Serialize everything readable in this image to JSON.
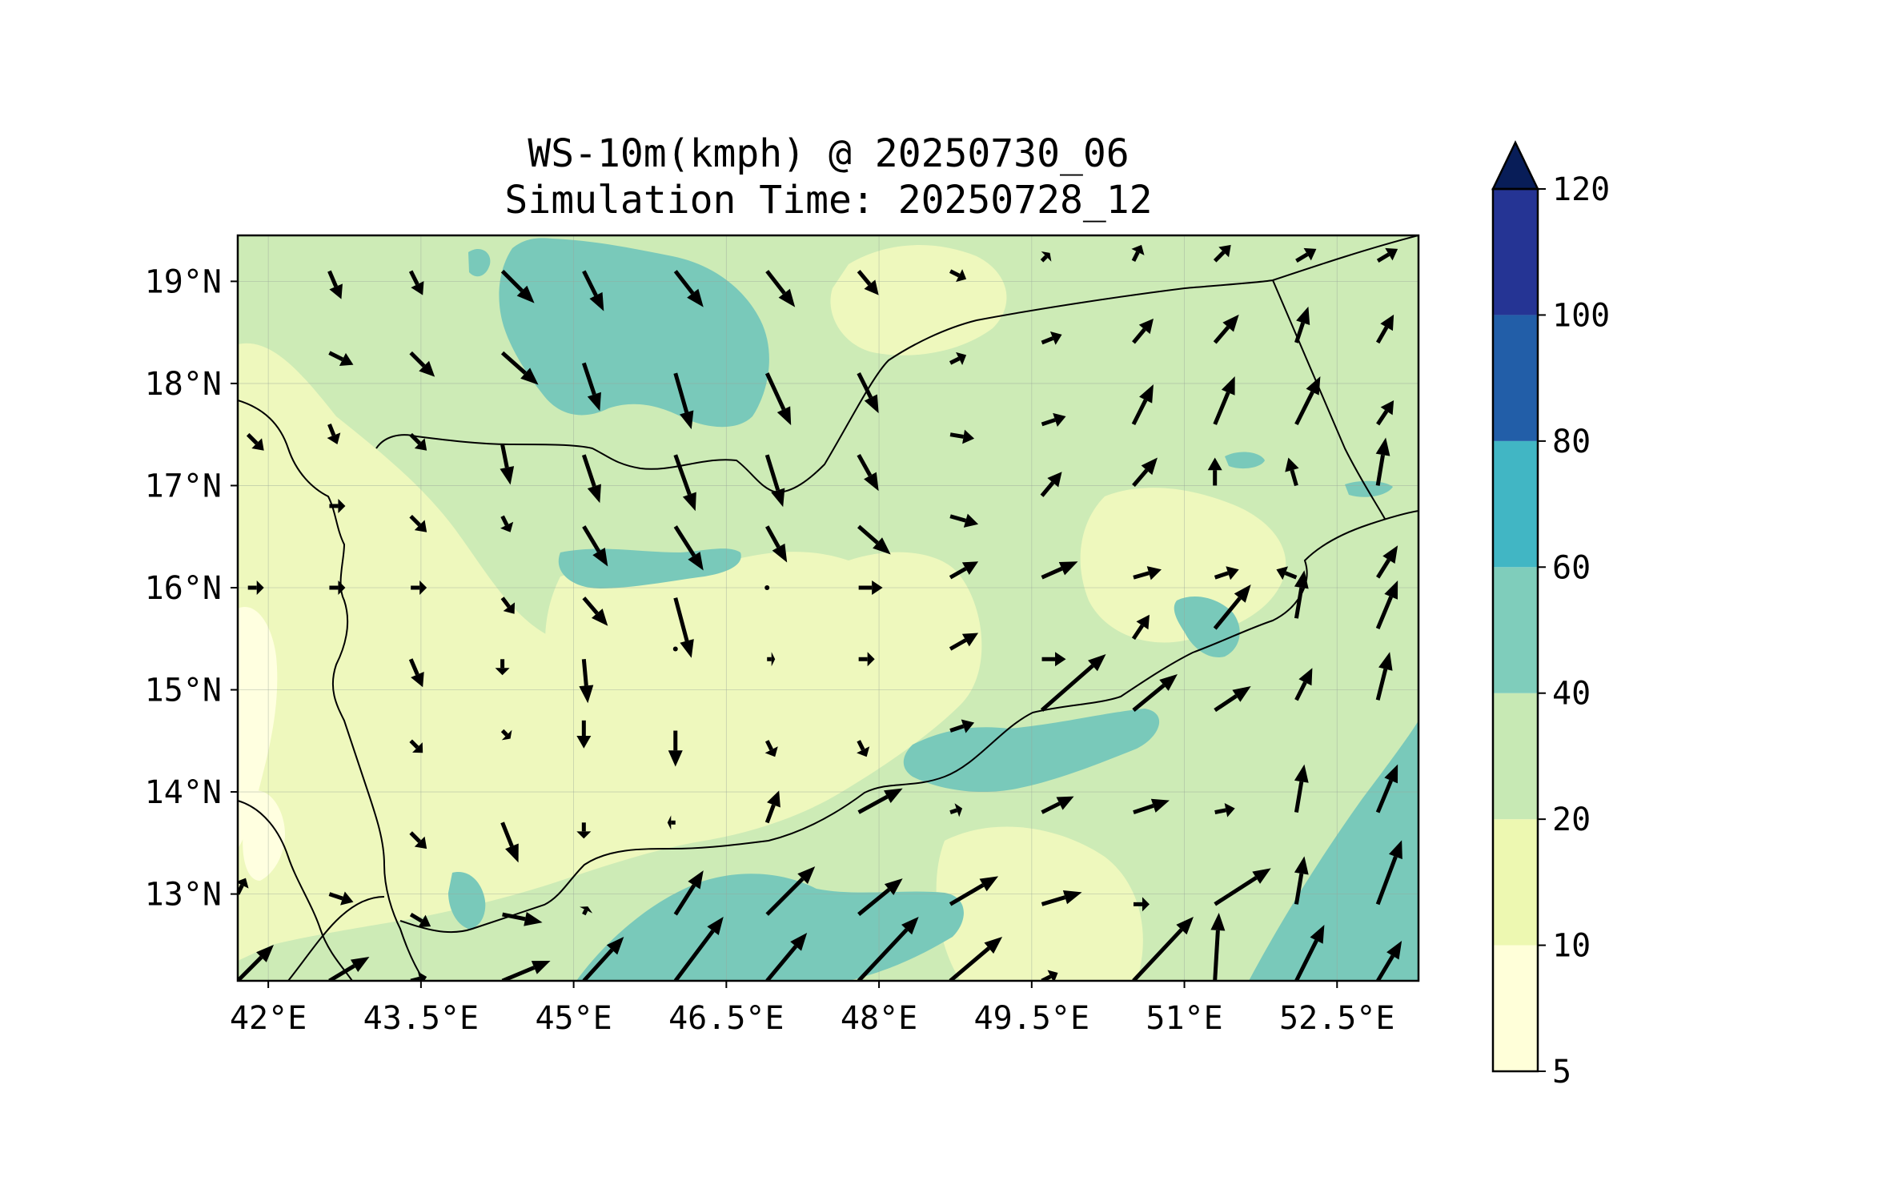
{
  "title": "WS-10m(kmph) @ 20250730_06",
  "subtitle": "Simulation Time: 20250728_12",
  "map": {
    "lon_range": [
      41.7,
      53.3
    ],
    "lat_range": [
      12.15,
      19.45
    ],
    "x_ticks": [
      {
        "value": 42.0,
        "label": "42°E"
      },
      {
        "value": 43.5,
        "label": "43.5°E"
      },
      {
        "value": 45.0,
        "label": "45°E"
      },
      {
        "value": 46.5,
        "label": "46.5°E"
      },
      {
        "value": 48.0,
        "label": "48°E"
      },
      {
        "value": 49.5,
        "label": "49.5°E"
      },
      {
        "value": 51.0,
        "label": "51°E"
      },
      {
        "value": 52.5,
        "label": "52.5°E"
      }
    ],
    "y_ticks": [
      {
        "value": 19,
        "label": "19°N"
      },
      {
        "value": 18,
        "label": "18°N"
      },
      {
        "value": 17,
        "label": "17°N"
      },
      {
        "value": 16,
        "label": "16°N"
      },
      {
        "value": 15,
        "label": "15°N"
      },
      {
        "value": 14,
        "label": "14°N"
      },
      {
        "value": 13,
        "label": "13°N"
      }
    ],
    "grid": true,
    "background_color": "#d6efb8"
  },
  "colorbar": {
    "levels": [
      {
        "label": "5",
        "color": "#ffffd9"
      },
      {
        "label": "10",
        "color": "#edf8b1"
      },
      {
        "label": "20",
        "color": "#c7e9b4"
      },
      {
        "label": "40",
        "color": "#7fcdbb"
      },
      {
        "label": "60",
        "color": "#41b6c4"
      },
      {
        "label": "80",
        "color": "#225ea8"
      },
      {
        "label": "100",
        "color": "#253494"
      },
      {
        "label": "120",
        "color": "#081d58"
      }
    ],
    "extend": "max"
  },
  "chart_data": {
    "type": "heatmap",
    "variable": "WS-10m(kmph)",
    "vectors_note": "wind direction arrows",
    "wind_vectors": [
      [
        42.6,
        19.1,
        0.15,
        -0.35
      ],
      [
        43.4,
        19.1,
        0.15,
        -0.3
      ],
      [
        44.3,
        19.1,
        0.4,
        -0.4
      ],
      [
        45.1,
        19.1,
        0.25,
        -0.5
      ],
      [
        46.0,
        19.1,
        0.35,
        -0.45
      ],
      [
        46.9,
        19.1,
        0.35,
        -0.45
      ],
      [
        47.8,
        19.1,
        0.25,
        -0.3
      ],
      [
        48.7,
        19.1,
        0.2,
        -0.1
      ],
      [
        49.6,
        19.2,
        0.1,
        0.1
      ],
      [
        50.5,
        19.2,
        0.1,
        0.2
      ],
      [
        51.3,
        19.2,
        0.2,
        0.2
      ],
      [
        52.1,
        19.2,
        0.25,
        0.15
      ],
      [
        52.9,
        19.2,
        0.25,
        0.15
      ],
      [
        42.6,
        18.3,
        0.3,
        -0.15
      ],
      [
        43.4,
        18.3,
        0.3,
        -0.3
      ],
      [
        44.3,
        18.3,
        0.45,
        -0.4
      ],
      [
        45.1,
        18.2,
        0.2,
        -0.6
      ],
      [
        46.0,
        18.1,
        0.2,
        -0.7
      ],
      [
        46.9,
        18.1,
        0.3,
        -0.65
      ],
      [
        47.8,
        18.1,
        0.25,
        -0.5
      ],
      [
        48.7,
        18.2,
        0.2,
        0.1
      ],
      [
        49.6,
        18.4,
        0.25,
        0.1
      ],
      [
        50.5,
        18.4,
        0.25,
        0.3
      ],
      [
        51.3,
        18.4,
        0.3,
        0.35
      ],
      [
        52.1,
        18.4,
        0.15,
        0.45
      ],
      [
        52.9,
        18.4,
        0.2,
        0.35
      ],
      [
        41.8,
        17.5,
        0.2,
        -0.2
      ],
      [
        42.6,
        17.6,
        0.1,
        -0.25
      ],
      [
        43.4,
        17.5,
        0.2,
        -0.2
      ],
      [
        44.3,
        17.4,
        0.1,
        -0.5
      ],
      [
        45.1,
        17.3,
        0.2,
        -0.6
      ],
      [
        46.0,
        17.3,
        0.25,
        -0.7
      ],
      [
        46.9,
        17.3,
        0.2,
        -0.65
      ],
      [
        47.8,
        17.3,
        0.25,
        -0.45
      ],
      [
        48.7,
        17.5,
        0.3,
        -0.05
      ],
      [
        49.6,
        17.6,
        0.3,
        0.1
      ],
      [
        50.5,
        17.6,
        0.25,
        0.5
      ],
      [
        51.3,
        17.6,
        0.25,
        0.6
      ],
      [
        52.1,
        17.6,
        0.3,
        0.6
      ],
      [
        52.9,
        17.6,
        0.2,
        0.3
      ],
      [
        42.6,
        16.8,
        0.2,
        0.0
      ],
      [
        43.4,
        16.7,
        0.2,
        -0.2
      ],
      [
        44.3,
        16.7,
        0.1,
        -0.2
      ],
      [
        45.1,
        16.6,
        0.3,
        -0.5
      ],
      [
        46.0,
        16.6,
        0.35,
        -0.55
      ],
      [
        46.9,
        16.6,
        0.25,
        -0.45
      ],
      [
        47.8,
        16.6,
        0.4,
        -0.35
      ],
      [
        48.7,
        16.7,
        0.35,
        -0.1
      ],
      [
        49.6,
        16.9,
        0.25,
        0.3
      ],
      [
        50.5,
        17.0,
        0.3,
        0.35
      ],
      [
        51.3,
        17.0,
        0.0,
        0.35
      ],
      [
        52.1,
        17.0,
        -0.1,
        0.35
      ],
      [
        52.9,
        17.0,
        0.1,
        0.6
      ],
      [
        41.8,
        16.0,
        0.2,
        0.0
      ],
      [
        42.6,
        16.0,
        0.2,
        0.0
      ],
      [
        43.4,
        16.0,
        0.2,
        0.0
      ],
      [
        44.3,
        15.9,
        0.15,
        -0.2
      ],
      [
        45.1,
        15.9,
        0.3,
        -0.35
      ],
      [
        46.0,
        15.9,
        0.2,
        -0.75
      ],
      [
        46.9,
        16.0,
        0.0,
        0.05
      ],
      [
        47.8,
        16.0,
        0.3,
        0.0
      ],
      [
        48.7,
        16.1,
        0.35,
        0.2
      ],
      [
        49.6,
        16.1,
        0.45,
        0.2
      ],
      [
        50.5,
        16.1,
        0.35,
        0.1
      ],
      [
        51.3,
        16.1,
        0.3,
        0.1
      ],
      [
        52.1,
        16.1,
        -0.25,
        0.1
      ],
      [
        52.9,
        16.1,
        0.25,
        0.4
      ],
      [
        43.4,
        15.3,
        0.15,
        -0.35
      ],
      [
        44.3,
        15.3,
        0.0,
        -0.2
      ],
      [
        45.1,
        15.3,
        0.05,
        -0.55
      ],
      [
        46.0,
        15.4,
        0.0,
        0.0
      ],
      [
        46.9,
        15.3,
        0.1,
        0.0
      ],
      [
        47.8,
        15.3,
        0.2,
        0.0
      ],
      [
        48.7,
        15.4,
        0.35,
        0.2
      ],
      [
        49.6,
        15.3,
        0.3,
        0.0
      ],
      [
        50.5,
        15.5,
        0.2,
        0.3
      ],
      [
        51.3,
        15.6,
        0.45,
        0.55
      ],
      [
        52.1,
        15.7,
        0.1,
        0.6
      ],
      [
        52.9,
        15.6,
        0.25,
        0.6
      ],
      [
        43.4,
        14.5,
        0.15,
        -0.15
      ],
      [
        44.3,
        14.6,
        0.1,
        -0.1
      ],
      [
        45.1,
        14.7,
        0.0,
        -0.35
      ],
      [
        46.0,
        14.6,
        0.0,
        -0.45
      ],
      [
        46.9,
        14.5,
        0.1,
        -0.2
      ],
      [
        47.8,
        14.5,
        0.1,
        -0.2
      ],
      [
        48.7,
        14.6,
        0.3,
        0.1
      ],
      [
        49.6,
        14.8,
        0.8,
        0.7
      ],
      [
        50.5,
        14.8,
        0.55,
        0.45
      ],
      [
        51.3,
        14.8,
        0.45,
        0.3
      ],
      [
        52.1,
        14.9,
        0.2,
        0.4
      ],
      [
        52.9,
        14.9,
        0.15,
        0.6
      ],
      [
        43.4,
        13.6,
        0.2,
        -0.2
      ],
      [
        44.3,
        13.7,
        0.2,
        -0.5
      ],
      [
        45.1,
        13.7,
        0.0,
        -0.2
      ],
      [
        46.0,
        13.7,
        -0.1,
        0.0
      ],
      [
        46.9,
        13.7,
        0.15,
        0.4
      ],
      [
        47.8,
        13.8,
        0.55,
        0.3
      ],
      [
        48.7,
        13.8,
        0.15,
        0.05
      ],
      [
        49.6,
        13.8,
        0.4,
        0.2
      ],
      [
        50.5,
        13.8,
        0.45,
        0.15
      ],
      [
        51.3,
        13.8,
        0.25,
        0.05
      ],
      [
        52.1,
        13.8,
        0.1,
        0.6
      ],
      [
        52.9,
        13.8,
        0.25,
        0.6
      ],
      [
        41.7,
        13.0,
        0.1,
        0.2
      ],
      [
        42.6,
        13.0,
        0.3,
        -0.1
      ],
      [
        43.4,
        12.8,
        0.25,
        -0.15
      ],
      [
        44.3,
        12.8,
        0.5,
        -0.1
      ],
      [
        45.1,
        12.8,
        0.05,
        0.1
      ],
      [
        46.0,
        12.8,
        0.35,
        0.55
      ],
      [
        46.9,
        12.8,
        0.6,
        0.6
      ],
      [
        47.8,
        12.8,
        0.55,
        0.45
      ],
      [
        48.7,
        12.9,
        0.6,
        0.35
      ],
      [
        49.6,
        12.9,
        0.5,
        0.15
      ],
      [
        50.5,
        12.9,
        0.2,
        0.0
      ],
      [
        51.3,
        12.9,
        0.7,
        0.45
      ],
      [
        52.1,
        12.9,
        0.1,
        0.6
      ],
      [
        52.9,
        12.9,
        0.3,
        0.8
      ],
      [
        41.7,
        12.15,
        0.45,
        0.45
      ],
      [
        42.6,
        12.15,
        0.5,
        0.3
      ],
      [
        43.4,
        12.15,
        0.2,
        0.05
      ],
      [
        44.3,
        12.15,
        0.6,
        0.25
      ],
      [
        45.1,
        12.15,
        0.5,
        0.55
      ],
      [
        46.0,
        12.15,
        0.6,
        0.8
      ],
      [
        46.9,
        12.15,
        0.5,
        0.6
      ],
      [
        47.8,
        12.15,
        0.75,
        0.8
      ],
      [
        48.7,
        12.15,
        0.65,
        0.55
      ],
      [
        49.6,
        12.15,
        0.2,
        0.1
      ],
      [
        50.5,
        12.15,
        0.75,
        0.8
      ],
      [
        51.3,
        12.15,
        0.05,
        0.85
      ],
      [
        52.1,
        12.15,
        0.35,
        0.7
      ],
      [
        52.9,
        12.15,
        0.3,
        0.5
      ]
    ]
  }
}
